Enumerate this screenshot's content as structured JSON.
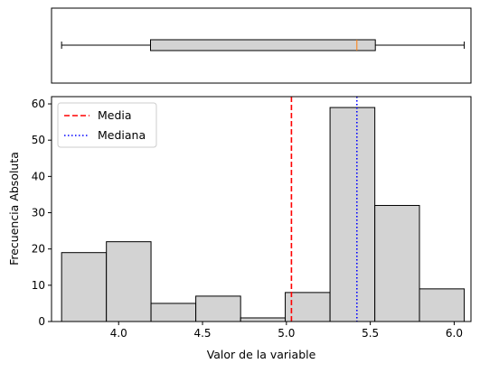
{
  "chart_data": [
    {
      "type": "box",
      "orientation": "horizontal",
      "xlim": [
        3.6,
        6.1
      ],
      "whisker_low": 3.66,
      "q1": 4.19,
      "median": 5.42,
      "q3": 5.53,
      "whisker_high": 6.06,
      "box_color": "#d3d3d3",
      "median_color": "#ff7f0e"
    },
    {
      "type": "histogram",
      "xlabel": "Valor de la variable",
      "ylabel": "Frecuencia Absoluta",
      "xlim": [
        3.6,
        6.1
      ],
      "ylim": [
        0,
        62
      ],
      "xticks": [
        4.0,
        4.5,
        5.0,
        5.5,
        6.0
      ],
      "xtick_labels": [
        "4.0",
        "4.5",
        "5.0",
        "5.5",
        "6.0"
      ],
      "yticks": [
        0,
        10,
        20,
        30,
        40,
        50,
        60
      ],
      "ytick_labels": [
        "0",
        "10",
        "20",
        "30",
        "40",
        "50",
        "60"
      ],
      "bin_edges": [
        3.66,
        3.927,
        4.193,
        4.46,
        4.727,
        4.993,
        5.26,
        5.527,
        5.793,
        6.06
      ],
      "counts": [
        19,
        22,
        5,
        7,
        1,
        8,
        59,
        32,
        9
      ],
      "bar_color": "#d3d3d3",
      "lines": [
        {
          "name": "Media",
          "x": 5.03,
          "color": "#ff0000",
          "style": "dashed"
        },
        {
          "name": "Mediana",
          "x": 5.42,
          "color": "#0000ff",
          "style": "dotted"
        }
      ],
      "legend": {
        "position": "top-left",
        "entries": [
          "Media",
          "Mediana"
        ]
      }
    }
  ]
}
